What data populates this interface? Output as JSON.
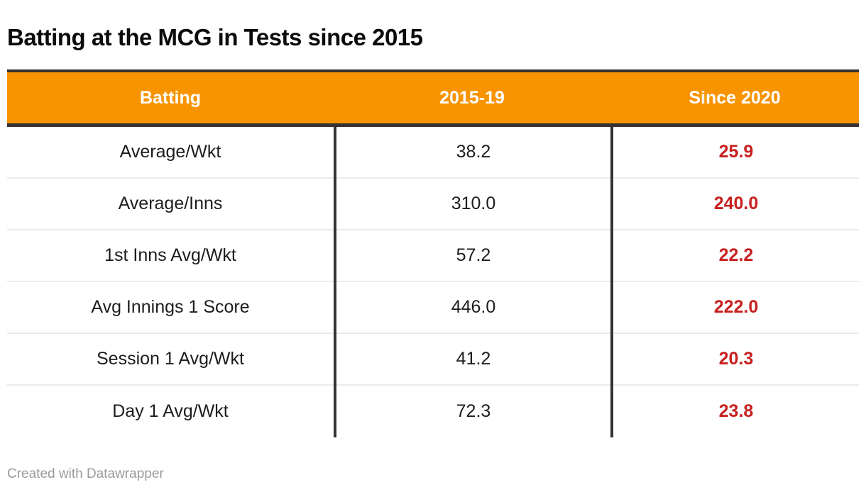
{
  "title": "Batting at the MCG in Tests since 2015",
  "attribution": "Created with Datawrapper",
  "colors": {
    "header_bg": "#f79400",
    "header_text": "#ffffff",
    "border_dark": "#333333",
    "row_separator": "#ebebeb",
    "body_text": "#1d1d1d",
    "highlight_value": "#c7201f",
    "attribution_text": "#9a9a9a"
  },
  "table": {
    "columns": [
      "Batting",
      "2015-19",
      "Since 2020"
    ],
    "rows": [
      {
        "label": "Average/Wkt",
        "v1": "38.2",
        "v2": "25.9"
      },
      {
        "label": "Average/Inns",
        "v1": "310.0",
        "v2": "240.0"
      },
      {
        "label": "1st Inns Avg/Wkt",
        "v1": "57.2",
        "v2": "22.2"
      },
      {
        "label": "Avg Innings 1 Score",
        "v1": "446.0",
        "v2": "222.0"
      },
      {
        "label": "Session 1 Avg/Wkt",
        "v1": "41.2",
        "v2": "20.3"
      },
      {
        "label": "Day 1 Avg/Wkt",
        "v1": "72.3",
        "v2": "23.8"
      }
    ]
  },
  "chart_data": {
    "type": "table",
    "title": "Batting at the MCG in Tests since 2015",
    "columns": [
      "Batting",
      "2015-19",
      "Since 2020"
    ],
    "rows": [
      [
        "Average/Wkt",
        38.2,
        25.9
      ],
      [
        "Average/Inns",
        310.0,
        240.0
      ],
      [
        "1st Inns Avg/Wkt",
        57.2,
        22.2
      ],
      [
        "Avg Innings 1 Score",
        446.0,
        222.0
      ],
      [
        "Session 1 Avg/Wkt",
        41.2,
        20.3
      ],
      [
        "Day 1 Avg/Wkt",
        72.3,
        23.8
      ]
    ],
    "layout_hints": {
      "highlight_column": "Since 2020",
      "highlight_style": "bold red values",
      "header_style": "orange background, white bold text",
      "column_dividers": "dark vertical lines between columns in body only",
      "attribution": "Created with Datawrapper"
    }
  }
}
